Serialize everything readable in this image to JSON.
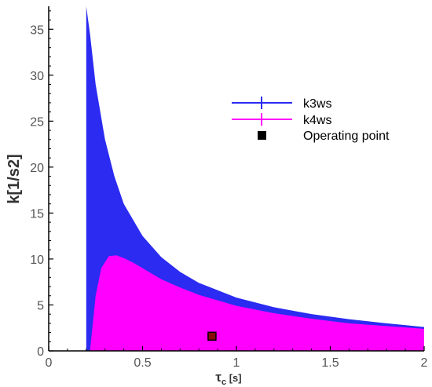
{
  "chart_data": {
    "type": "area",
    "x_axis": {
      "label_main": "τ",
      "label_sub": "c",
      "label_unit": " [s]",
      "lim": [
        0,
        2
      ],
      "ticks": [
        0,
        0.5,
        1,
        1.5,
        2
      ],
      "tick_labels": [
        "0",
        "0.5",
        "1",
        "1.5",
        "2"
      ]
    },
    "y_axis": {
      "label": "k[1/s2]",
      "lim": [
        0,
        37.5
      ],
      "ticks": [
        0,
        5,
        10,
        15,
        20,
        25,
        30,
        35
      ],
      "tick_labels": [
        "0",
        "5",
        "10",
        "15",
        "20",
        "25",
        "30",
        "35"
      ]
    },
    "grid": false,
    "legend_position": "right-middle",
    "series": [
      {
        "name": "k3ws",
        "color": "#2b2bf2",
        "marker": "line-cross",
        "lower_x_start": 0.2,
        "upper": {
          "x": [
            0.2,
            0.22,
            0.25,
            0.3,
            0.35,
            0.4,
            0.5,
            0.6,
            0.7,
            0.8,
            1.0,
            1.2,
            1.4,
            1.6,
            1.8,
            2.0
          ],
          "y": [
            37.5,
            34.5,
            29.0,
            23.0,
            19.0,
            16.0,
            12.5,
            10.2,
            8.6,
            7.4,
            5.8,
            4.75,
            4.0,
            3.45,
            3.0,
            2.6
          ]
        }
      },
      {
        "name": "k4ws",
        "color": "#ff00ff",
        "marker": "line-cross",
        "lower_x_start": 0.22,
        "upper": {
          "x": [
            0.22,
            0.25,
            0.28,
            0.32,
            0.36,
            0.4,
            0.45,
            0.5,
            0.6,
            0.7,
            0.8,
            1.0,
            1.2,
            1.4,
            1.6,
            1.8,
            2.0
          ],
          "y": [
            0.0,
            6.0,
            9.0,
            10.3,
            10.4,
            10.1,
            9.6,
            9.0,
            7.8,
            6.9,
            6.1,
            4.9,
            4.1,
            3.5,
            3.0,
            2.7,
            2.4
          ]
        }
      }
    ],
    "points": [
      {
        "name": "Operating point",
        "color": "#000000",
        "marker": "square",
        "x": 0.87,
        "y": 1.6
      }
    ]
  }
}
